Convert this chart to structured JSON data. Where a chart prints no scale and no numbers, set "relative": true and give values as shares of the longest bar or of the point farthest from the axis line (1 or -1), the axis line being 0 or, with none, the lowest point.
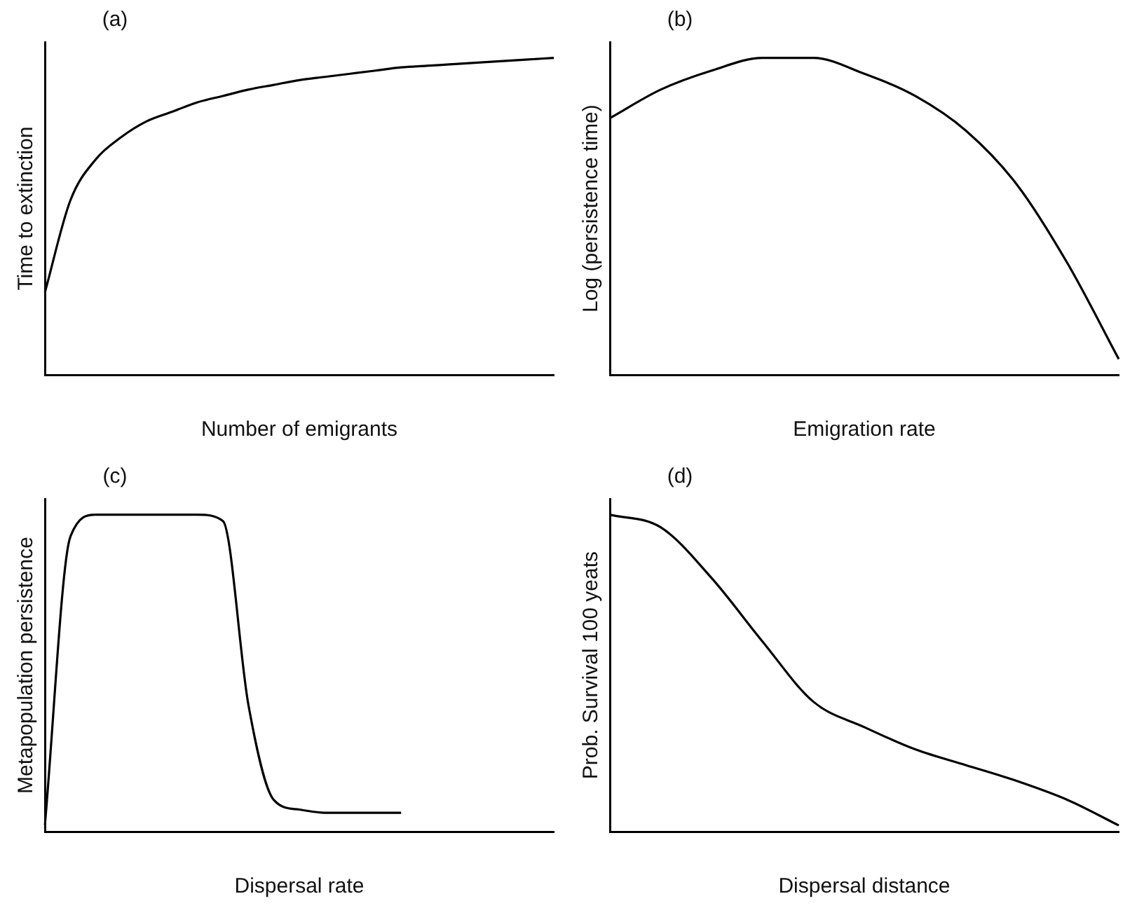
{
  "chart_data": [
    {
      "type": "line",
      "title": "(a)",
      "xlabel": "Number of emigrants",
      "ylabel": "Time to extinction",
      "relative": true,
      "grid": false,
      "legend": false,
      "marker": "none",
      "categories": [
        null,
        null,
        null,
        null,
        null,
        null,
        null,
        null,
        null,
        null,
        null,
        null,
        null,
        null,
        null,
        null,
        null,
        null,
        null,
        null,
        null
      ],
      "series": [
        {
          "color": "#000000",
          "values": [
            0.26,
            0.55,
            0.68,
            0.75,
            0.8,
            0.83,
            0.86,
            0.88,
            0.9,
            0.915,
            0.93,
            0.94,
            0.95,
            0.96,
            0.97,
            0.975,
            0.98,
            0.985,
            0.99,
            0.995,
            1.0
          ]
        }
      ]
    },
    {
      "type": "line",
      "title": "(b)",
      "xlabel": "Emigration rate",
      "ylabel": "Log (persistence time)",
      "relative": true,
      "grid": false,
      "legend": false,
      "marker": "none",
      "categories": [
        null,
        null,
        null,
        null,
        null,
        null,
        null,
        null,
        null,
        null,
        null
      ],
      "series": [
        {
          "color": "#000000",
          "values": [
            0.81,
            0.9,
            0.96,
            1.0,
            1.0,
            0.95,
            0.88,
            0.77,
            0.6,
            0.35,
            0.05
          ]
        }
      ]
    },
    {
      "type": "line",
      "title": "(c)",
      "xlabel": "Dispersal rate",
      "ylabel": "Metapopulation persistence",
      "relative": true,
      "grid": false,
      "legend": false,
      "marker": "none",
      "categories": [
        null,
        null,
        null,
        null,
        null,
        null,
        null,
        null,
        null,
        null,
        null,
        null,
        null,
        null,
        null,
        null,
        null,
        null,
        null,
        null,
        null
      ],
      "series": [
        {
          "color": "#000000",
          "values": [
            0.02,
            0.93,
            1.0,
            1.0,
            1.0,
            1.0,
            1.0,
            0.98,
            0.4,
            0.1,
            0.07,
            0.06,
            0.06,
            0.06,
            0.06,
            null,
            null,
            null,
            null,
            null,
            null
          ]
        }
      ]
    },
    {
      "type": "line",
      "title": "(d)",
      "xlabel": "Dispersal distance",
      "ylabel": "Prob. Survival 100 yeats",
      "relative": true,
      "grid": false,
      "legend": false,
      "marker": "none",
      "categories": [
        null,
        null,
        null,
        null,
        null,
        null,
        null,
        null,
        null,
        null,
        null
      ],
      "series": [
        {
          "color": "#000000",
          "values": [
            1.0,
            0.96,
            0.8,
            0.6,
            0.41,
            0.33,
            0.26,
            0.21,
            0.16,
            0.1,
            0.02
          ]
        }
      ]
    }
  ]
}
